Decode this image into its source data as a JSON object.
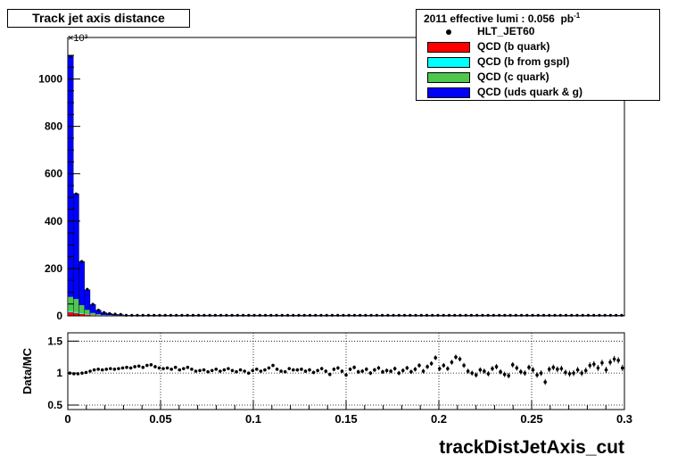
{
  "title": "Track jet axis distance",
  "legend": {
    "header": "2011 effective lumi : 0.056",
    "header_unit": "pb",
    "header_exp": "-1",
    "entries": [
      {
        "label": "HLT_JET60",
        "kind": "marker",
        "color": "#000000"
      },
      {
        "label": "QCD (b quark)",
        "kind": "fill",
        "color": "#ff0000"
      },
      {
        "label": "QCD (b from gspl)",
        "kind": "fill",
        "color": "#00ffff"
      },
      {
        "label": "QCD (c quark)",
        "kind": "fill",
        "color": "#4fc74f"
      },
      {
        "label": "QCD (uds quark & g)",
        "kind": "fill",
        "color": "#0000ff"
      }
    ]
  },
  "colors": {
    "b": "#ff0000",
    "bgspl": "#00ffff",
    "c": "#4fc74f",
    "uds": "#0000ff"
  },
  "chart_data": [
    {
      "type": "bar",
      "title": "Track jet axis distance",
      "stacked": true,
      "y_multiplier": "×10³",
      "xlim": [
        0,
        0.3
      ],
      "ylim": [
        0,
        1100
      ],
      "y_ticks": [
        0,
        200,
        400,
        600,
        800,
        1000
      ],
      "bin_width": 0.003,
      "first_bins": [
        {
          "x": 0.0,
          "b": 15,
          "bgspl": 5,
          "c": 60,
          "uds": 1020,
          "data": 1095
        },
        {
          "x": 0.003,
          "b": 12,
          "bgspl": 4,
          "c": 55,
          "uds": 445,
          "data": 515
        },
        {
          "x": 0.006,
          "b": 8,
          "bgspl": 3,
          "c": 34,
          "uds": 185,
          "data": 230
        },
        {
          "x": 0.009,
          "b": 5,
          "bgspl": 2,
          "c": 18,
          "uds": 85,
          "data": 112
        },
        {
          "x": 0.012,
          "b": 3,
          "bgspl": 1,
          "c": 8,
          "uds": 36,
          "data": 49
        },
        {
          "x": 0.015,
          "b": 2,
          "bgspl": 1,
          "c": 4,
          "uds": 17,
          "data": 24
        },
        {
          "x": 0.018,
          "b": 1,
          "bgspl": 0.5,
          "c": 2,
          "uds": 10,
          "data": 14
        },
        {
          "x": 0.021,
          "b": 1,
          "bgspl": 0.4,
          "c": 1.5,
          "uds": 7,
          "data": 10
        },
        {
          "x": 0.024,
          "b": 0.6,
          "bgspl": 0.3,
          "c": 1,
          "uds": 5,
          "data": 7.5
        },
        {
          "x": 0.027,
          "b": 0.5,
          "bgspl": 0.2,
          "c": 0.8,
          "uds": 4,
          "data": 6
        }
      ],
      "tail_level": 2.5
    },
    {
      "type": "scatter",
      "ylabel": "Data/MC",
      "xlabel": "trackDistJetAxis_cut",
      "xlim": [
        0,
        0.3
      ],
      "ylim": [
        0.43,
        1.63
      ],
      "y_ticks": [
        0.5,
        1,
        1.5
      ],
      "y_tick_labels": [
        "0.5",
        "1",
        "1.5"
      ],
      "x_ticks": [
        0,
        0.05,
        0.1,
        0.15,
        0.2,
        0.25,
        0.3
      ],
      "x_tick_labels": [
        "0",
        "0.05",
        "0.1",
        "0.15",
        "0.2",
        "0.25",
        "0.3"
      ],
      "ratio": [
        1.0,
        0.99,
        0.99,
        1.0,
        1.01,
        1.03,
        1.05,
        1.06,
        1.05,
        1.06,
        1.07,
        1.06,
        1.07,
        1.08,
        1.09,
        1.08,
        1.1,
        1.11,
        1.09,
        1.12,
        1.13,
        1.1,
        1.08,
        1.07,
        1.08,
        1.06,
        1.09,
        1.05,
        1.07,
        1.09,
        1.06,
        1.03,
        1.04,
        1.05,
        1.02,
        1.04,
        1.06,
        1.03,
        1.05,
        1.07,
        1.04,
        1.02,
        1.05,
        1.03,
        1.0,
        1.04,
        1.06,
        1.03,
        1.05,
        1.08,
        1.12,
        1.06,
        1.03,
        1.02,
        1.07,
        1.05,
        1.05,
        1.06,
        1.03,
        1.05,
        1.01,
        1.04,
        1.07,
        1.03,
        0.98,
        1.06,
        1.08,
        1.03,
        0.97,
        1.06,
        1.09,
        1.02,
        1.03,
        1.06,
        1.0,
        1.05,
        1.08,
        1.02,
        1.04,
        1.03,
        1.07,
        1.0,
        1.04,
        1.08,
        1.02,
        1.06,
        1.12,
        1.03,
        1.1,
        1.15,
        1.24,
        1.07,
        1.12,
        1.07,
        1.17,
        1.25,
        1.22,
        1.12,
        1.03,
        1.0,
        0.97,
        1.05,
        1.03,
        0.99,
        1.07,
        1.1,
        1.02,
        0.98,
        0.96,
        1.13,
        1.08,
        1.02,
        1.0,
        1.09,
        1.05,
        0.97,
        1.0,
        0.86,
        1.06,
        1.09,
        1.06,
        1.07,
        1.01,
        0.99,
        1.0,
        1.05,
        1.0,
        1.04,
        1.12,
        1.14,
        1.08,
        1.16,
        1.05,
        1.17,
        1.22,
        1.2,
        1.08
      ],
      "ratio_err": 0.05
    }
  ]
}
